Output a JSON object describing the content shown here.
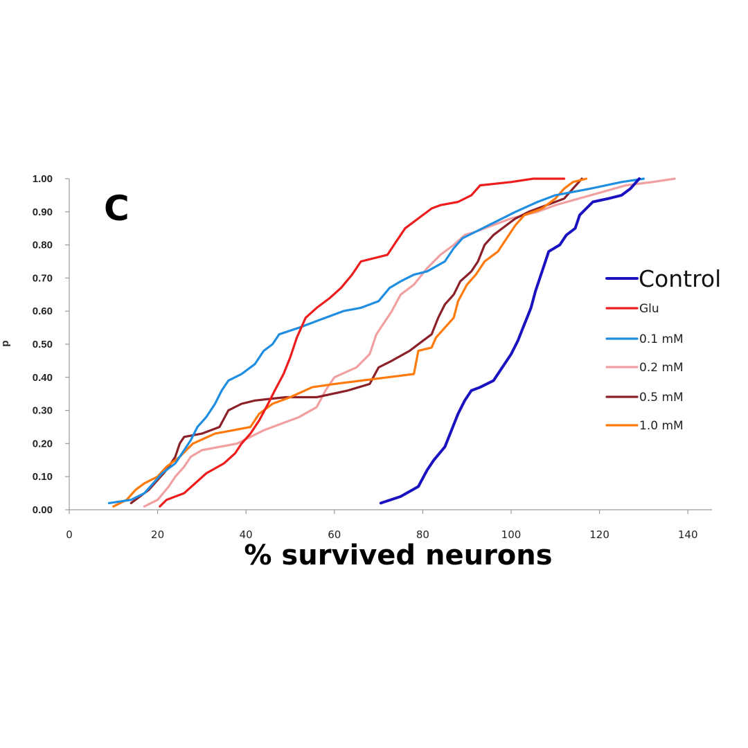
{
  "panel_label": "C",
  "chart_data": {
    "type": "line",
    "title": "",
    "xlabel": "% survived neurons",
    "ylabel": "p",
    "xlim": [
      0,
      140
    ],
    "ylim": [
      0,
      1
    ],
    "x_ticks": [
      "0",
      "20",
      "40",
      "60",
      "80",
      "100",
      "120",
      "140"
    ],
    "y_ticks": [
      "0.00",
      "0.10",
      "0.20",
      "0.30",
      "0.40",
      "0.50",
      "0.60",
      "0.70",
      "0.80",
      "0.90",
      "1.00"
    ],
    "grid": false,
    "legend_position": "right",
    "series": [
      {
        "name": "Control",
        "color": "#1a12c0",
        "points": [
          [
            70.5,
            0.02
          ],
          [
            75,
            0.04
          ],
          [
            79,
            0.07
          ],
          [
            81,
            0.12
          ],
          [
            82.5,
            0.15
          ],
          [
            85,
            0.19
          ],
          [
            86.5,
            0.24
          ],
          [
            88,
            0.29
          ],
          [
            89.5,
            0.33
          ],
          [
            91,
            0.36
          ],
          [
            93,
            0.37
          ],
          [
            96,
            0.39
          ],
          [
            98,
            0.43
          ],
          [
            100,
            0.47
          ],
          [
            101.5,
            0.51
          ],
          [
            103,
            0.56
          ],
          [
            104.5,
            0.61
          ],
          [
            105.5,
            0.66
          ],
          [
            106.5,
            0.7
          ],
          [
            107.5,
            0.74
          ],
          [
            108.5,
            0.78
          ],
          [
            111,
            0.8
          ],
          [
            112.5,
            0.83
          ],
          [
            114.5,
            0.85
          ],
          [
            115.5,
            0.89
          ],
          [
            117,
            0.91
          ],
          [
            118.5,
            0.93
          ],
          [
            122,
            0.94
          ],
          [
            125,
            0.95
          ],
          [
            127,
            0.97
          ],
          [
            129,
            1.0
          ]
        ]
      },
      {
        "name": "Glu",
        "color": "#ee1c1c",
        "points": [
          [
            20.5,
            0.01
          ],
          [
            22,
            0.03
          ],
          [
            26,
            0.05
          ],
          [
            28.5,
            0.08
          ],
          [
            31,
            0.11
          ],
          [
            35,
            0.14
          ],
          [
            37.5,
            0.17
          ],
          [
            39,
            0.2
          ],
          [
            41,
            0.23
          ],
          [
            43,
            0.27
          ],
          [
            45,
            0.32
          ],
          [
            46.5,
            0.36
          ],
          [
            48.5,
            0.41
          ],
          [
            50,
            0.46
          ],
          [
            51.5,
            0.52
          ],
          [
            53.5,
            0.58
          ],
          [
            56,
            0.61
          ],
          [
            59,
            0.64
          ],
          [
            61.5,
            0.67
          ],
          [
            64,
            0.71
          ],
          [
            66,
            0.75
          ],
          [
            72,
            0.77
          ],
          [
            74,
            0.81
          ],
          [
            76,
            0.85
          ],
          [
            79,
            0.88
          ],
          [
            82,
            0.91
          ],
          [
            84,
            0.92
          ],
          [
            88,
            0.93
          ],
          [
            91,
            0.95
          ],
          [
            93,
            0.98
          ],
          [
            100,
            0.99
          ],
          [
            105,
            1.0
          ],
          [
            112,
            1.0
          ]
        ]
      },
      {
        "name": "0.1 mM",
        "color": "#1f8ee0",
        "points": [
          [
            9,
            0.02
          ],
          [
            14,
            0.03
          ],
          [
            17,
            0.05
          ],
          [
            19,
            0.08
          ],
          [
            21,
            0.11
          ],
          [
            24,
            0.14
          ],
          [
            26,
            0.18
          ],
          [
            27.5,
            0.21
          ],
          [
            29,
            0.25
          ],
          [
            31,
            0.28
          ],
          [
            33,
            0.32
          ],
          [
            34.5,
            0.36
          ],
          [
            36,
            0.39
          ],
          [
            39,
            0.41
          ],
          [
            42,
            0.44
          ],
          [
            44,
            0.48
          ],
          [
            46,
            0.5
          ],
          [
            47.5,
            0.53
          ],
          [
            52,
            0.55
          ],
          [
            56,
            0.57
          ],
          [
            62,
            0.6
          ],
          [
            66,
            0.61
          ],
          [
            70,
            0.63
          ],
          [
            72.5,
            0.67
          ],
          [
            75,
            0.69
          ],
          [
            78,
            0.71
          ],
          [
            81,
            0.72
          ],
          [
            85,
            0.75
          ],
          [
            87,
            0.79
          ],
          [
            89,
            0.82
          ],
          [
            92,
            0.84
          ],
          [
            95,
            0.86
          ],
          [
            98,
            0.88
          ],
          [
            101,
            0.9
          ],
          [
            106,
            0.93
          ],
          [
            110,
            0.95
          ],
          [
            118,
            0.97
          ],
          [
            125,
            0.99
          ],
          [
            130,
            1.0
          ]
        ]
      },
      {
        "name": "0.2 mM",
        "color": "#f0a0a0",
        "points": [
          [
            17,
            0.01
          ],
          [
            20,
            0.03
          ],
          [
            22.5,
            0.07
          ],
          [
            24,
            0.1
          ],
          [
            26,
            0.13
          ],
          [
            27.5,
            0.16
          ],
          [
            30,
            0.18
          ],
          [
            34,
            0.19
          ],
          [
            38,
            0.2
          ],
          [
            41,
            0.22
          ],
          [
            44,
            0.24
          ],
          [
            48,
            0.26
          ],
          [
            52,
            0.28
          ],
          [
            56,
            0.31
          ],
          [
            58,
            0.36
          ],
          [
            60,
            0.4
          ],
          [
            65,
            0.43
          ],
          [
            68,
            0.47
          ],
          [
            69.5,
            0.53
          ],
          [
            71,
            0.56
          ],
          [
            73,
            0.6
          ],
          [
            75,
            0.65
          ],
          [
            78,
            0.68
          ],
          [
            81,
            0.73
          ],
          [
            84,
            0.77
          ],
          [
            87,
            0.8
          ],
          [
            89.5,
            0.83
          ],
          [
            92,
            0.84
          ],
          [
            96,
            0.86
          ],
          [
            100,
            0.88
          ],
          [
            106,
            0.9
          ],
          [
            110,
            0.92
          ],
          [
            118,
            0.95
          ],
          [
            126,
            0.98
          ],
          [
            132,
            0.99
          ],
          [
            137,
            1.0
          ]
        ]
      },
      {
        "name": "0.5 mM",
        "color": "#8c2028",
        "points": [
          [
            14,
            0.02
          ],
          [
            16,
            0.04
          ],
          [
            18,
            0.06
          ],
          [
            20,
            0.09
          ],
          [
            22,
            0.12
          ],
          [
            24,
            0.16
          ],
          [
            25,
            0.2
          ],
          [
            26,
            0.22
          ],
          [
            30,
            0.23
          ],
          [
            34,
            0.25
          ],
          [
            36,
            0.3
          ],
          [
            39,
            0.32
          ],
          [
            42,
            0.33
          ],
          [
            49,
            0.34
          ],
          [
            56,
            0.34
          ],
          [
            63,
            0.36
          ],
          [
            68,
            0.38
          ],
          [
            70,
            0.43
          ],
          [
            73,
            0.45
          ],
          [
            77,
            0.48
          ],
          [
            80,
            0.51
          ],
          [
            82,
            0.53
          ],
          [
            83.5,
            0.58
          ],
          [
            85,
            0.62
          ],
          [
            87,
            0.65
          ],
          [
            88.5,
            0.69
          ],
          [
            91,
            0.72
          ],
          [
            92.5,
            0.75
          ],
          [
            94,
            0.8
          ],
          [
            96,
            0.83
          ],
          [
            99,
            0.86
          ],
          [
            101,
            0.88
          ],
          [
            104,
            0.9
          ],
          [
            108,
            0.92
          ],
          [
            112,
            0.94
          ],
          [
            114,
            0.97
          ],
          [
            116,
            1.0
          ]
        ]
      },
      {
        "name": "1.0 mM",
        "color": "#ff7a0a",
        "points": [
          [
            10,
            0.01
          ],
          [
            13,
            0.03
          ],
          [
            15,
            0.06
          ],
          [
            17,
            0.08
          ],
          [
            20,
            0.1
          ],
          [
            22,
            0.13
          ],
          [
            25,
            0.16
          ],
          [
            28,
            0.2
          ],
          [
            33,
            0.23
          ],
          [
            37,
            0.24
          ],
          [
            41,
            0.25
          ],
          [
            43,
            0.29
          ],
          [
            46,
            0.32
          ],
          [
            50,
            0.34
          ],
          [
            55,
            0.37
          ],
          [
            60,
            0.38
          ],
          [
            66,
            0.39
          ],
          [
            72,
            0.4
          ],
          [
            78,
            0.41
          ],
          [
            79,
            0.48
          ],
          [
            82,
            0.49
          ],
          [
            83,
            0.52
          ],
          [
            85,
            0.55
          ],
          [
            87,
            0.58
          ],
          [
            88,
            0.63
          ],
          [
            90,
            0.68
          ],
          [
            92,
            0.71
          ],
          [
            94,
            0.75
          ],
          [
            97,
            0.78
          ],
          [
            99,
            0.82
          ],
          [
            101,
            0.86
          ],
          [
            103,
            0.89
          ],
          [
            107,
            0.91
          ],
          [
            110,
            0.94
          ],
          [
            112,
            0.97
          ],
          [
            114,
            0.99
          ],
          [
            117,
            1.0
          ]
        ]
      }
    ]
  }
}
